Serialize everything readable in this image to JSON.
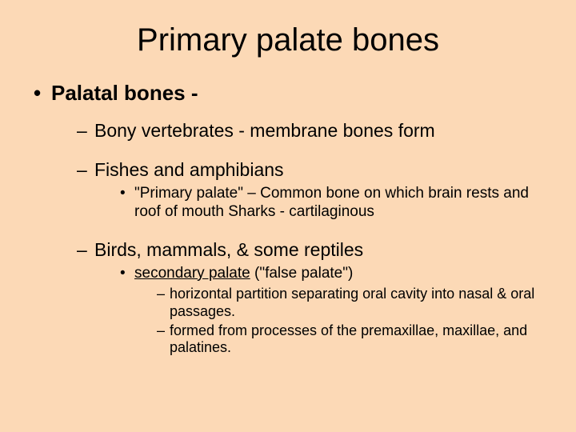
{
  "background_color": "#fcd9b6",
  "text_color": "#000000",
  "font_family": "Arial",
  "title": {
    "text": "Primary palate bones",
    "fontsize": 40
  },
  "level1": {
    "bullet_char": "•",
    "fontsize": 26,
    "fontweight": "bold",
    "items": [
      {
        "text": "Palatal bones -"
      }
    ]
  },
  "level2": {
    "bullet_char": "–",
    "fontsize": 23,
    "items": [
      {
        "text": "Bony vertebrates - membrane bones form"
      },
      {
        "text": "Fishes and amphibians"
      },
      {
        "text": "Birds, mammals, & some reptiles"
      }
    ]
  },
  "level3": {
    "bullet_char": "•",
    "fontsize": 19,
    "items_group0": [
      {
        "text": "\"Primary palate\" – Common bone on which brain rests and roof of mouth Sharks - cartilaginous"
      }
    ],
    "items_group1": [
      {
        "underlined": "secondary palate",
        "rest": " (\"false palate\")"
      }
    ]
  },
  "level4": {
    "bullet_char": "–",
    "fontsize": 18,
    "items": [
      {
        "text": "horizontal partition separating oral cavity into nasal & oral passages."
      },
      {
        "text": "formed from processes of the premaxillae, maxillae, and palatines."
      }
    ]
  }
}
